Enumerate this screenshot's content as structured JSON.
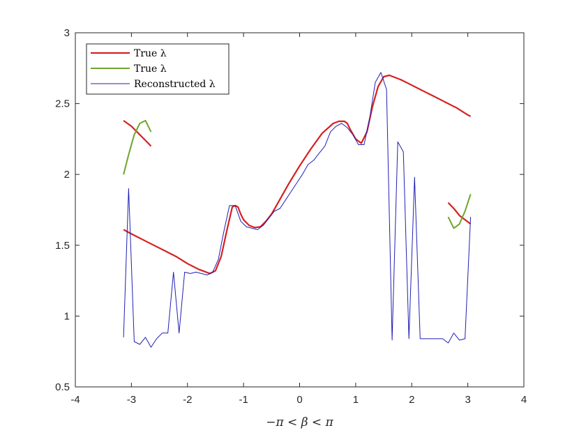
{
  "chart_data": {
    "type": "line",
    "title": "",
    "xlabel": "−π < β < π",
    "ylabel": "",
    "xlim": [
      -4,
      4
    ],
    "ylim": [
      0.5,
      3
    ],
    "xticks": [
      -4,
      -3,
      -2,
      -1,
      0,
      1,
      2,
      3,
      4
    ],
    "yticks": [
      0.5,
      1,
      1.5,
      2,
      2.5,
      3
    ],
    "xtick_labels": [
      "-4",
      "-3",
      "-2",
      "-1",
      "0",
      "1",
      "2",
      "3",
      "4"
    ],
    "ytick_labels": [
      "0.5",
      "1",
      "1.5",
      "2",
      "2.5",
      "3"
    ],
    "grid": false,
    "legend_position": "top-left",
    "series": [
      {
        "name": "True λ",
        "color": "#d62020",
        "segments": [
          {
            "x": [
              -3.14,
              -3.0,
              -2.9,
              -2.8,
              -2.7,
              -2.65
            ],
            "y": [
              2.38,
              2.34,
              2.3,
              2.26,
              2.22,
              2.2
            ]
          },
          {
            "x": [
              -3.14,
              -3.0,
              -2.8,
              -2.6,
              -2.4,
              -2.2,
              -2.0,
              -1.8,
              -1.6,
              -1.5,
              -1.4,
              -1.3,
              -1.2,
              -1.15,
              -1.1,
              -1.05,
              -1.0,
              -0.9,
              -0.8,
              -0.7,
              -0.6,
              -0.5,
              -0.4,
              -0.2,
              0.0,
              0.2,
              0.4,
              0.6,
              0.7,
              0.8,
              0.85,
              0.9,
              1.0,
              1.1,
              1.2,
              1.3,
              1.4,
              1.5,
              1.6,
              1.8,
              2.0,
              2.2,
              2.4,
              2.6,
              2.8,
              3.0,
              3.05
            ],
            "y": [
              1.61,
              1.58,
              1.54,
              1.5,
              1.46,
              1.42,
              1.37,
              1.33,
              1.3,
              1.32,
              1.42,
              1.6,
              1.77,
              1.78,
              1.77,
              1.72,
              1.68,
              1.64,
              1.625,
              1.63,
              1.67,
              1.72,
              1.79,
              1.93,
              2.06,
              2.18,
              2.29,
              2.36,
              2.375,
              2.375,
              2.36,
              2.32,
              2.25,
              2.22,
              2.3,
              2.48,
              2.62,
              2.69,
              2.7,
              2.67,
              2.63,
              2.59,
              2.55,
              2.51,
              2.47,
              2.42,
              2.41
            ]
          },
          {
            "x": [
              2.65,
              2.75,
              2.85,
              2.95,
              3.05
            ],
            "y": [
              1.8,
              1.76,
              1.71,
              1.68,
              1.65
            ]
          }
        ]
      },
      {
        "name": "True λ",
        "color": "#6fa52d",
        "segments": [
          {
            "x": [
              -3.14,
              -3.05,
              -2.95,
              -2.85,
              -2.75,
              -2.7,
              -2.65
            ],
            "y": [
              2.0,
              2.14,
              2.28,
              2.36,
              2.38,
              2.34,
              2.3
            ]
          },
          {
            "x": [
              2.65,
              2.75,
              2.85,
              2.95,
              3.05
            ],
            "y": [
              1.7,
              1.62,
              1.65,
              1.74,
              1.86
            ]
          }
        ]
      },
      {
        "name": "Reconstructed λ",
        "color": "#1f1fb4",
        "segments": [
          {
            "x": [
              -3.14,
              -3.05,
              -2.95,
              -2.85,
              -2.75,
              -2.65,
              -2.55,
              -2.45,
              -2.35,
              -2.25,
              -2.15,
              -2.05,
              -1.95,
              -1.85,
              -1.75,
              -1.65,
              -1.55,
              -1.45,
              -1.35,
              -1.25,
              -1.15,
              -1.05,
              -0.95,
              -0.85,
              -0.75,
              -0.65,
              -0.55,
              -0.45,
              -0.35,
              -0.25,
              -0.15,
              -0.05,
              0.05,
              0.15,
              0.25,
              0.35,
              0.45,
              0.55,
              0.65,
              0.75,
              0.85,
              0.95,
              1.05,
              1.15,
              1.25,
              1.35,
              1.45,
              1.55,
              1.65,
              1.75,
              1.85,
              1.95,
              2.05,
              2.15,
              2.25,
              2.35,
              2.45,
              2.55,
              2.65,
              2.75,
              2.85,
              2.95,
              3.05
            ],
            "y": [
              0.85,
              1.9,
              0.82,
              0.8,
              0.85,
              0.78,
              0.84,
              0.88,
              0.88,
              1.31,
              0.88,
              1.31,
              1.3,
              1.31,
              1.3,
              1.29,
              1.31,
              1.4,
              1.6,
              1.78,
              1.78,
              1.67,
              1.63,
              1.62,
              1.61,
              1.64,
              1.69,
              1.74,
              1.76,
              1.82,
              1.88,
              1.94,
              2.0,
              2.07,
              2.1,
              2.15,
              2.2,
              2.3,
              2.34,
              2.36,
              2.33,
              2.28,
              2.21,
              2.21,
              2.4,
              2.65,
              2.72,
              2.6,
              0.83,
              2.23,
              2.16,
              0.84,
              1.98,
              0.84,
              0.84,
              0.84,
              0.84,
              0.84,
              0.81,
              0.88,
              0.83,
              0.84,
              1.7
            ]
          }
        ]
      }
    ]
  }
}
